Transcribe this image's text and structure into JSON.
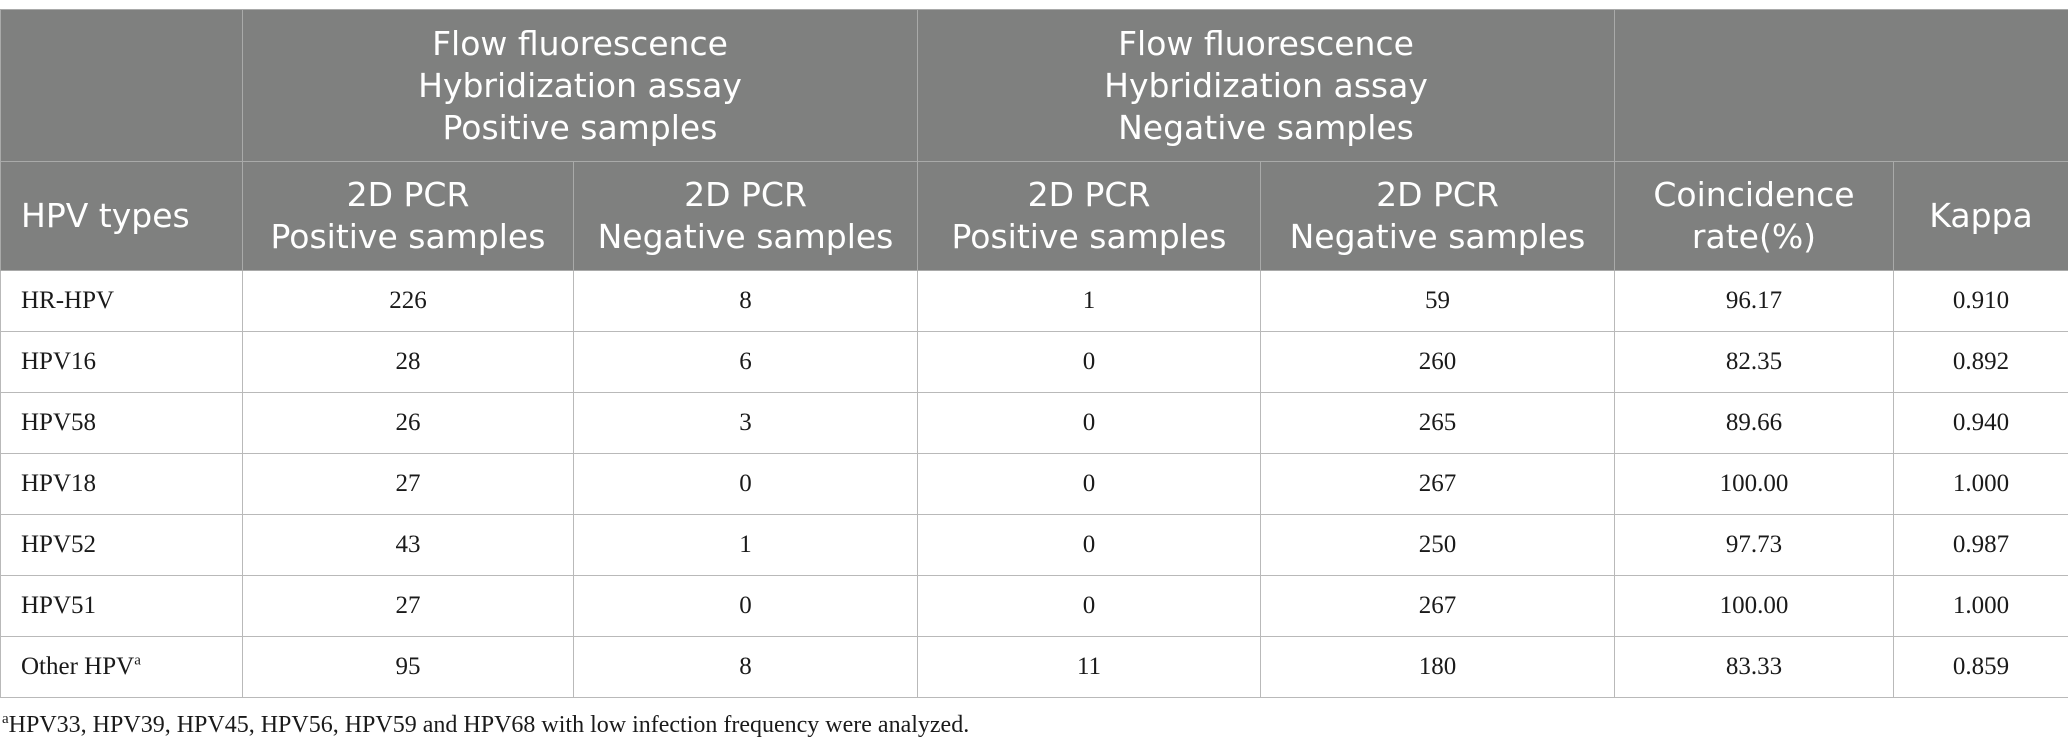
{
  "header": {
    "group1": [
      "Flow fluorescence",
      "Hybridization assay",
      "Positive samples"
    ],
    "group2": [
      "Flow fluorescence",
      "Hybridization assay",
      "Negative samples"
    ],
    "columns": {
      "types": "HPV types",
      "c1": [
        "2D PCR",
        "Positive samples"
      ],
      "c2": [
        "2D PCR",
        "Negative samples"
      ],
      "c3": [
        "2D PCR",
        "Positive samples"
      ],
      "c4": [
        "2D PCR",
        "Negative samples"
      ],
      "coincidence": [
        "Coincidence",
        "rate(%)"
      ],
      "kappa": "Kappa"
    }
  },
  "rows": [
    {
      "type": "HR-HPV",
      "sup": "",
      "v1": "226",
      "v2": "8",
      "v3": "1",
      "v4": "59",
      "rate": "96.17",
      "kappa": "0.910"
    },
    {
      "type": "HPV16",
      "sup": "",
      "v1": "28",
      "v2": "6",
      "v3": "0",
      "v4": "260",
      "rate": "82.35",
      "kappa": "0.892"
    },
    {
      "type": "HPV58",
      "sup": "",
      "v1": "26",
      "v2": "3",
      "v3": "0",
      "v4": "265",
      "rate": "89.66",
      "kappa": "0.940"
    },
    {
      "type": "HPV18",
      "sup": "",
      "v1": "27",
      "v2": "0",
      "v3": "0",
      "v4": "267",
      "rate": "100.00",
      "kappa": "1.000"
    },
    {
      "type": "HPV52",
      "sup": "",
      "v1": "43",
      "v2": "1",
      "v3": "0",
      "v4": "250",
      "rate": "97.73",
      "kappa": "0.987"
    },
    {
      "type": "HPV51",
      "sup": "",
      "v1": "27",
      "v2": "0",
      "v3": "0",
      "v4": "267",
      "rate": "100.00",
      "kappa": "1.000"
    },
    {
      "type": "Other HPV",
      "sup": "a",
      "v1": "95",
      "v2": "8",
      "v3": "11",
      "v4": "180",
      "rate": "83.33",
      "kappa": "0.859"
    }
  ],
  "footnote": {
    "mark": "a",
    "text": "HPV33, HPV39, HPV45, HPV56, HPV59 and HPV68 with low infection frequency were analyzed."
  }
}
